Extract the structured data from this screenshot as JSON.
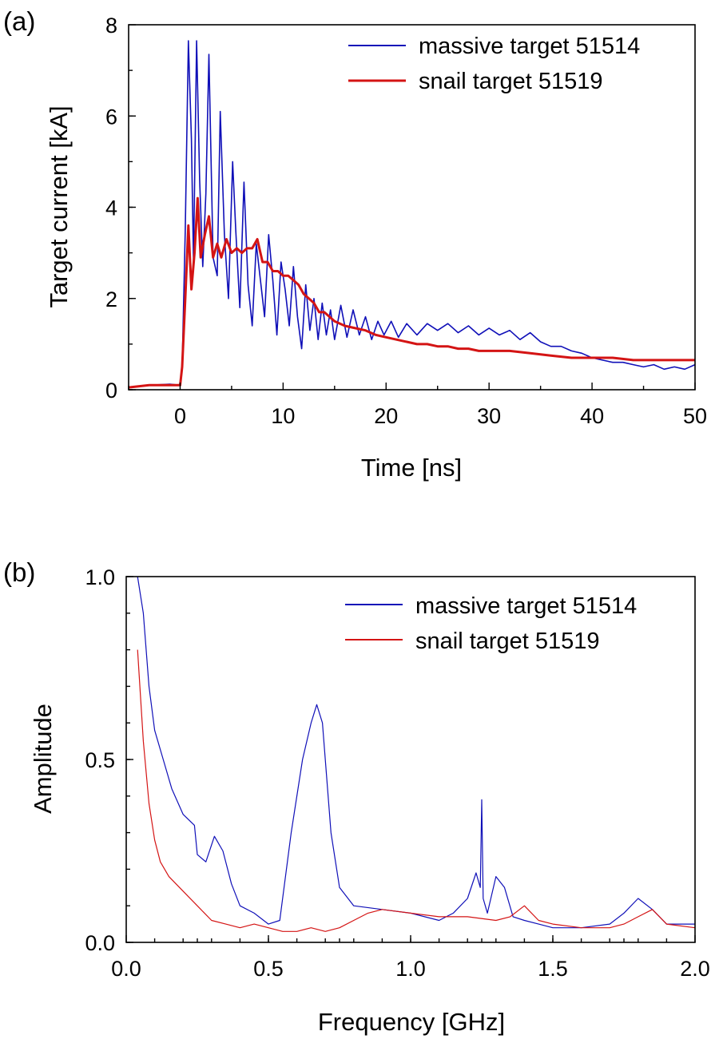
{
  "colors": {
    "blue": "#1010b8",
    "red": "#d41414"
  },
  "chart_data": [
    {
      "type": "line",
      "panel_label": "(a)",
      "xlabel": "Time [ns]",
      "ylabel": "Target current [kA]",
      "xlim": [
        -5,
        50
      ],
      "ylim": [
        0,
        8
      ],
      "xticks": [
        0,
        10,
        20,
        30,
        40,
        50
      ],
      "xtick_labels": [
        "0",
        "10",
        "20",
        "30",
        "40",
        "50"
      ],
      "yticks": [
        0,
        2,
        4,
        6,
        8
      ],
      "ytick_labels": [
        "0",
        "2",
        "4",
        "6",
        "8"
      ],
      "legend_position": "top-right",
      "series": [
        {
          "name": "massive target 51514",
          "color": "#1010b8",
          "x": [
            -5,
            -3,
            -1,
            0,
            0.2,
            0.5,
            0.8,
            1.1,
            1.3,
            1.6,
            1.9,
            2.2,
            2.5,
            2.8,
            3.2,
            3.6,
            3.9,
            4.3,
            4.7,
            5.1,
            5.4,
            5.8,
            6.2,
            6.6,
            7.0,
            7.4,
            7.8,
            8.2,
            8.6,
            9.0,
            9.4,
            9.8,
            10.2,
            10.6,
            11.0,
            11.4,
            11.8,
            12.2,
            12.6,
            13.0,
            13.4,
            13.8,
            14.2,
            14.6,
            15.0,
            15.6,
            16.2,
            16.8,
            17.4,
            18.0,
            18.6,
            19.2,
            19.8,
            20.5,
            21.2,
            22.0,
            23.0,
            24.0,
            25.0,
            26.0,
            27.0,
            28.0,
            29.0,
            30.0,
            31.0,
            32.0,
            33.0,
            34.0,
            35.0,
            36.0,
            37.0,
            38.0,
            39.0,
            40.0,
            41.0,
            42.0,
            43.0,
            44.0,
            45.0,
            46.0,
            47.0,
            48.0,
            49.0,
            50.0
          ],
          "y": [
            0.05,
            0.1,
            0.12,
            0.1,
            0.5,
            3.5,
            7.65,
            5.5,
            2.8,
            7.65,
            4.6,
            2.7,
            4.3,
            7.35,
            2.9,
            2.5,
            6.1,
            3.4,
            2.0,
            5.0,
            3.5,
            1.8,
            4.55,
            2.3,
            1.4,
            3.2,
            2.4,
            1.6,
            3.4,
            2.4,
            1.2,
            2.8,
            2.2,
            1.4,
            2.7,
            1.6,
            0.9,
            2.3,
            1.3,
            2.0,
            1.1,
            1.9,
            1.2,
            1.75,
            1.1,
            1.85,
            1.15,
            1.75,
            1.2,
            1.6,
            1.1,
            1.5,
            1.2,
            1.5,
            1.15,
            1.45,
            1.2,
            1.45,
            1.3,
            1.45,
            1.25,
            1.4,
            1.2,
            1.35,
            1.2,
            1.3,
            1.1,
            1.25,
            1.05,
            0.95,
            0.95,
            0.85,
            0.8,
            0.7,
            0.65,
            0.6,
            0.6,
            0.55,
            0.5,
            0.55,
            0.45,
            0.5,
            0.45,
            0.55
          ]
        },
        {
          "name": "snail target 51519",
          "color": "#d41414",
          "x": [
            -5,
            -3,
            -1,
            0,
            0.2,
            0.5,
            0.8,
            1.1,
            1.4,
            1.7,
            2.0,
            2.4,
            2.8,
            3.2,
            3.6,
            4.0,
            4.5,
            5.0,
            5.5,
            6.0,
            6.5,
            7.0,
            7.5,
            8.0,
            8.5,
            9.0,
            9.5,
            10.0,
            10.5,
            11.0,
            11.5,
            12.0,
            12.5,
            13.0,
            13.5,
            14.0,
            15.0,
            16.0,
            17.0,
            18.0,
            19.0,
            20.0,
            21.0,
            22.0,
            23.0,
            24.0,
            25.0,
            26.0,
            27.0,
            28.0,
            29.0,
            30.0,
            32.0,
            34.0,
            36.0,
            38.0,
            40.0,
            42.0,
            44.0,
            46.0,
            48.0,
            50.0
          ],
          "y": [
            0.05,
            0.1,
            0.1,
            0.1,
            0.5,
            2.0,
            3.6,
            2.2,
            3.0,
            4.2,
            2.9,
            3.4,
            3.8,
            2.9,
            3.2,
            2.9,
            3.3,
            3.0,
            3.1,
            3.0,
            3.1,
            3.1,
            3.3,
            2.8,
            2.8,
            2.6,
            2.6,
            2.5,
            2.5,
            2.4,
            2.3,
            2.1,
            2.0,
            1.9,
            1.7,
            1.7,
            1.5,
            1.4,
            1.35,
            1.3,
            1.2,
            1.15,
            1.1,
            1.05,
            1.0,
            1.0,
            0.95,
            0.95,
            0.9,
            0.9,
            0.85,
            0.85,
            0.85,
            0.8,
            0.75,
            0.7,
            0.7,
            0.7,
            0.65,
            0.65,
            0.65,
            0.65
          ]
        }
      ]
    },
    {
      "type": "line",
      "panel_label": "(b)",
      "xlabel": "Frequency [GHz]",
      "ylabel": "Amplitude",
      "xlim": [
        0,
        2
      ],
      "ylim": [
        0,
        1
      ],
      "xticks": [
        0,
        0.5,
        1.0,
        1.5,
        2.0
      ],
      "xtick_labels": [
        "0.0",
        "0.5",
        "1.0",
        "1.5",
        "2.0"
      ],
      "yticks": [
        0,
        0.5,
        1.0
      ],
      "ytick_labels": [
        "0.0",
        "0.5",
        "1.0"
      ],
      "legend_position": "top-right",
      "series": [
        {
          "name": "massive target 51514",
          "color": "#1010b8",
          "x": [
            0.04,
            0.06,
            0.08,
            0.1,
            0.13,
            0.16,
            0.2,
            0.24,
            0.25,
            0.28,
            0.31,
            0.34,
            0.37,
            0.4,
            0.45,
            0.5,
            0.54,
            0.58,
            0.62,
            0.65,
            0.67,
            0.69,
            0.72,
            0.75,
            0.8,
            0.9,
            1.0,
            1.1,
            1.15,
            1.2,
            1.23,
            1.245,
            1.25,
            1.255,
            1.27,
            1.3,
            1.33,
            1.36,
            1.4,
            1.45,
            1.5,
            1.6,
            1.7,
            1.75,
            1.8,
            1.85,
            1.9,
            2.0
          ],
          "y": [
            1.0,
            0.9,
            0.7,
            0.58,
            0.5,
            0.42,
            0.35,
            0.32,
            0.24,
            0.22,
            0.29,
            0.25,
            0.16,
            0.1,
            0.08,
            0.05,
            0.06,
            0.3,
            0.5,
            0.6,
            0.65,
            0.6,
            0.3,
            0.15,
            0.1,
            0.09,
            0.08,
            0.06,
            0.08,
            0.12,
            0.19,
            0.15,
            0.39,
            0.12,
            0.08,
            0.18,
            0.15,
            0.07,
            0.06,
            0.05,
            0.04,
            0.04,
            0.05,
            0.08,
            0.12,
            0.09,
            0.05,
            0.05
          ]
        },
        {
          "name": "snail target 51519",
          "color": "#d41414",
          "x": [
            0.04,
            0.06,
            0.08,
            0.1,
            0.12,
            0.15,
            0.2,
            0.25,
            0.3,
            0.35,
            0.4,
            0.45,
            0.5,
            0.55,
            0.6,
            0.65,
            0.7,
            0.75,
            0.8,
            0.85,
            0.9,
            1.0,
            1.1,
            1.2,
            1.3,
            1.35,
            1.4,
            1.45,
            1.5,
            1.6,
            1.7,
            1.75,
            1.8,
            1.85,
            1.9,
            2.0
          ],
          "y": [
            0.8,
            0.55,
            0.38,
            0.28,
            0.22,
            0.18,
            0.14,
            0.1,
            0.06,
            0.05,
            0.04,
            0.05,
            0.04,
            0.03,
            0.03,
            0.04,
            0.03,
            0.04,
            0.06,
            0.08,
            0.09,
            0.08,
            0.07,
            0.07,
            0.06,
            0.07,
            0.1,
            0.06,
            0.05,
            0.04,
            0.04,
            0.05,
            0.07,
            0.09,
            0.05,
            0.04
          ]
        }
      ]
    }
  ]
}
